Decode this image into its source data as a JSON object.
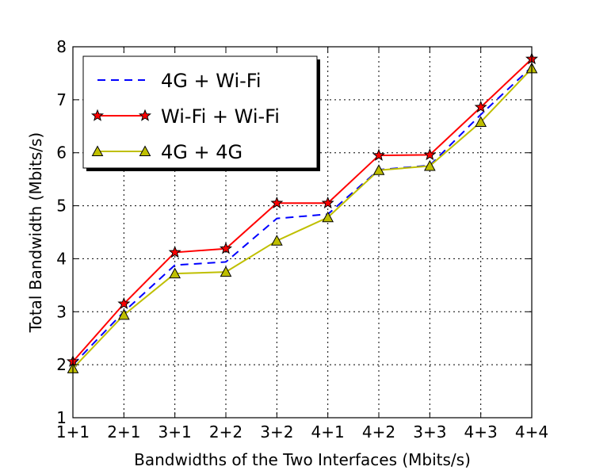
{
  "chart_data": {
    "type": "line",
    "categories": [
      "1+1",
      "2+1",
      "3+1",
      "2+2",
      "3+2",
      "4+1",
      "4+2",
      "3+3",
      "4+3",
      "4+4"
    ],
    "xlabel": "Bandwidths of the Two Interfaces (Mbits/s)",
    "ylabel": "Total Bandwidth (Mbits/s)",
    "ylim": [
      1,
      8
    ],
    "yticks": [
      "1",
      "2",
      "3",
      "4",
      "5",
      "6",
      "7",
      "8"
    ],
    "grid": true,
    "legend_position": "top-left",
    "series": [
      {
        "name": "4G + Wi-Fi",
        "values": [
          2.0,
          3.0,
          3.88,
          3.94,
          4.76,
          4.84,
          5.68,
          5.76,
          6.72,
          7.62
        ],
        "color": "#0000ff",
        "line_style": "dashed",
        "marker": "none"
      },
      {
        "name": "Wi-Fi + Wi-Fi",
        "values": [
          2.06,
          3.15,
          4.12,
          4.19,
          5.05,
          5.05,
          5.95,
          5.96,
          6.86,
          7.77
        ],
        "color": "#ff0000",
        "line_style": "solid",
        "marker": "star"
      },
      {
        "name": "4G + 4G",
        "values": [
          1.93,
          2.94,
          3.72,
          3.75,
          4.34,
          4.78,
          5.67,
          5.75,
          6.58,
          7.59
        ],
        "color": "#bfbf00",
        "line_style": "solid",
        "marker": "triangle"
      }
    ]
  }
}
